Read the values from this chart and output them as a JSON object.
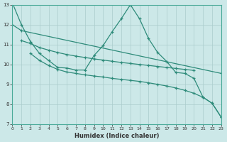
{
  "xlabel": "Humidex (Indice chaleur)",
  "background_color": "#cce8e8",
  "grid_color": "#aacccc",
  "line_color": "#2e8b7a",
  "xlim": [
    0,
    23
  ],
  "ylim": [
    7,
    13
  ],
  "yticks": [
    7,
    8,
    9,
    10,
    11,
    12,
    13
  ],
  "xticks": [
    0,
    1,
    2,
    3,
    4,
    5,
    6,
    7,
    8,
    9,
    10,
    11,
    12,
    13,
    14,
    15,
    16,
    17,
    18,
    19,
    20,
    21,
    22,
    23
  ],
  "curve1_x": [
    0,
    1,
    2,
    3,
    4,
    5,
    6,
    7,
    8,
    9,
    10,
    11,
    12,
    13,
    14,
    15,
    16,
    17,
    18,
    19,
    20,
    21,
    22,
    23
  ],
  "curve1_y": [
    13.1,
    12.0,
    11.15,
    10.55,
    10.2,
    9.85,
    9.82,
    9.72,
    9.72,
    10.45,
    10.95,
    11.65,
    12.3,
    13.0,
    12.3,
    11.3,
    10.6,
    10.15,
    9.6,
    9.55,
    9.3,
    8.35,
    8.05,
    7.35
  ],
  "curve2_x": [
    0,
    1,
    23
  ],
  "curve2_y": [
    12.0,
    11.7,
    9.55
  ],
  "curve3_x": [
    1,
    2,
    3,
    4,
    5,
    6,
    7,
    8,
    9,
    10,
    11,
    12,
    13,
    14,
    15,
    16,
    17,
    18,
    19,
    20
  ],
  "curve3_y": [
    11.2,
    11.05,
    10.85,
    10.72,
    10.6,
    10.5,
    10.42,
    10.35,
    10.28,
    10.22,
    10.16,
    10.1,
    10.05,
    10.0,
    9.95,
    9.9,
    9.85,
    9.8,
    9.75,
    9.7
  ],
  "curve4_x": [
    2,
    3,
    4,
    5,
    6,
    7,
    8,
    9,
    10,
    11,
    12,
    13,
    14,
    15,
    16,
    17,
    18,
    19,
    20,
    21,
    22,
    23
  ],
  "curve4_y": [
    10.55,
    10.2,
    9.95,
    9.75,
    9.62,
    9.55,
    9.48,
    9.42,
    9.37,
    9.3,
    9.25,
    9.2,
    9.15,
    9.08,
    9.0,
    8.92,
    8.82,
    8.7,
    8.55,
    8.35,
    8.05,
    7.35
  ]
}
